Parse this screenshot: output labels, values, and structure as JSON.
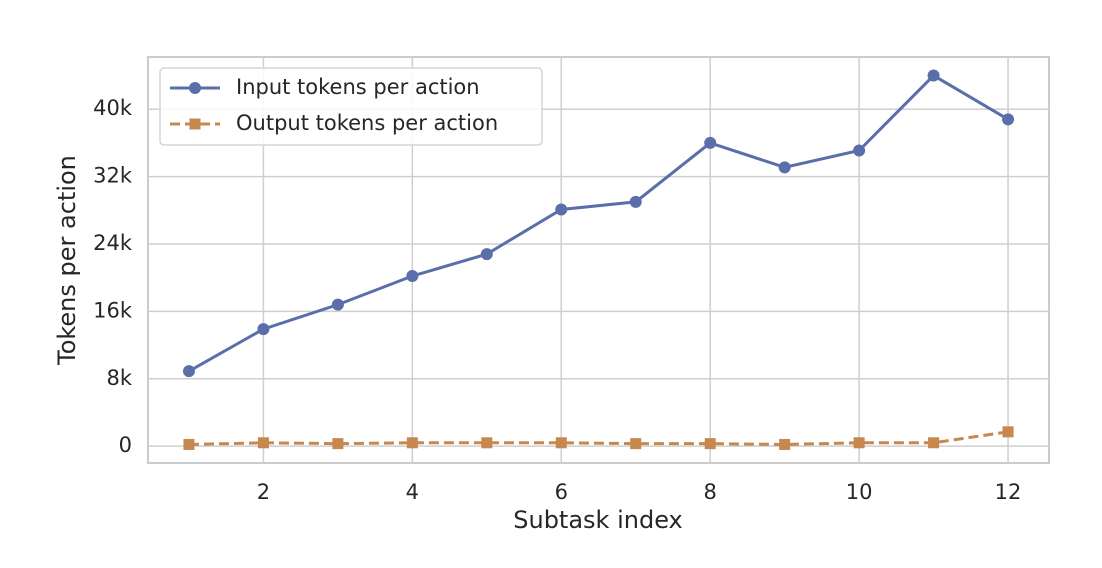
{
  "chart_data": {
    "type": "line",
    "x_label": "Subtask index",
    "y_label": "Tokens per action",
    "x": [
      1,
      2,
      3,
      4,
      5,
      6,
      7,
      8,
      9,
      10,
      11,
      12
    ],
    "series": [
      {
        "name": "Input tokens per action",
        "color": "#5a6eaa",
        "linestyle": "solid",
        "marker": "circle",
        "values": [
          8900,
          13900,
          16800,
          20200,
          22800,
          28100,
          29000,
          36000,
          33100,
          35100,
          44000,
          38800
        ]
      },
      {
        "name": "Output tokens per action",
        "color": "#c6884f",
        "linestyle": "dashed",
        "marker": "square",
        "values": [
          200,
          400,
          300,
          400,
          400,
          400,
          300,
          300,
          200,
          400,
          400,
          1700
        ]
      }
    ],
    "xlim": [
      0.45,
      12.55
    ],
    "xticks": [
      2,
      4,
      6,
      8,
      10,
      12
    ],
    "ylim": [
      -2000,
      46200
    ],
    "yticks": [
      0,
      {
        "value": 8000,
        "label": "8k"
      },
      {
        "value": 16000,
        "label": "16k"
      },
      {
        "value": 24000,
        "label": "24k"
      },
      {
        "value": 32000,
        "label": "32k"
      },
      {
        "value": 40000,
        "label": "40k"
      }
    ],
    "grid": true,
    "legend": "upper left"
  }
}
